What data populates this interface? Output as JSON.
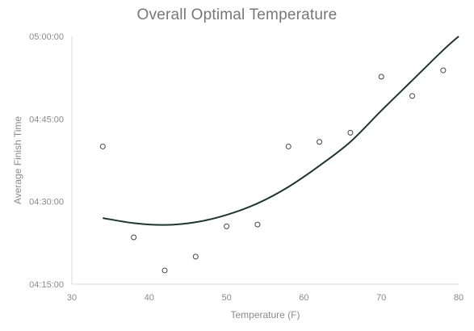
{
  "chart_data": {
    "type": "scatter",
    "title": "Overall Optimal Temperature",
    "xlabel": "Temperature (F)",
    "ylabel": "Average Finish Time",
    "xlim": [
      30,
      80
    ],
    "ylim_seconds": [
      15300,
      18000
    ],
    "x_ticks": [
      30,
      40,
      50,
      60,
      70,
      80
    ],
    "x_tick_labels": [
      "30",
      "40",
      "50",
      "60",
      "70",
      "80"
    ],
    "y_ticks_seconds": [
      15300,
      16200,
      17100,
      18000
    ],
    "y_tick_labels": [
      "04:15:00",
      "04:30:00",
      "04:45:00",
      "05:00:00"
    ],
    "grid": false,
    "legend": "none",
    "colors": {
      "points": "#444444",
      "trendline": "#1f3530",
      "axis": "#d9d9d9",
      "text": "#8a8a8a",
      "title": "#777777"
    },
    "points": [
      {
        "x": 34,
        "y": 16800
      },
      {
        "x": 38,
        "y": 15810
      },
      {
        "x": 42,
        "y": 15450
      },
      {
        "x": 46,
        "y": 15600
      },
      {
        "x": 50,
        "y": 15930
      },
      {
        "x": 54,
        "y": 15950
      },
      {
        "x": 58,
        "y": 16800
      },
      {
        "x": 62,
        "y": 16850
      },
      {
        "x": 66,
        "y": 16950
      },
      {
        "x": 70,
        "y": 17560
      },
      {
        "x": 74,
        "y": 17350
      },
      {
        "x": 78,
        "y": 17630
      }
    ],
    "trendline": {
      "type": "polynomial",
      "x": [
        34,
        38,
        42,
        46,
        50,
        54,
        58,
        62,
        66,
        70,
        74,
        78,
        80
      ],
      "y": [
        16020,
        15965,
        15945,
        15975,
        16055,
        16180,
        16360,
        16590,
        16850,
        17190,
        17520,
        17850,
        18000
      ]
    }
  }
}
